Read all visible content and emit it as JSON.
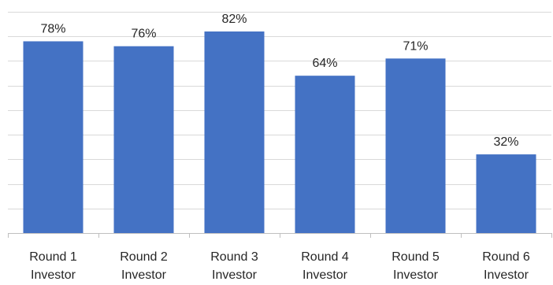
{
  "chart_data": {
    "type": "bar",
    "categories": [
      [
        "Round 1",
        "Investor"
      ],
      [
        "Round 2",
        "Investor"
      ],
      [
        "Round 3",
        "Investor"
      ],
      [
        "Round 4",
        "Investor"
      ],
      [
        "Round 5",
        "Investor"
      ],
      [
        "Round 6",
        "Investor"
      ]
    ],
    "values": [
      78,
      76,
      82,
      64,
      71,
      32
    ],
    "data_labels": [
      "78%",
      "76%",
      "82%",
      "64%",
      "71%",
      "32%"
    ],
    "value_unit": "%",
    "ylim": [
      0,
      90
    ],
    "grid": true,
    "bar_color": "#4472C4",
    "title": "",
    "xlabel": "",
    "ylabel": ""
  }
}
